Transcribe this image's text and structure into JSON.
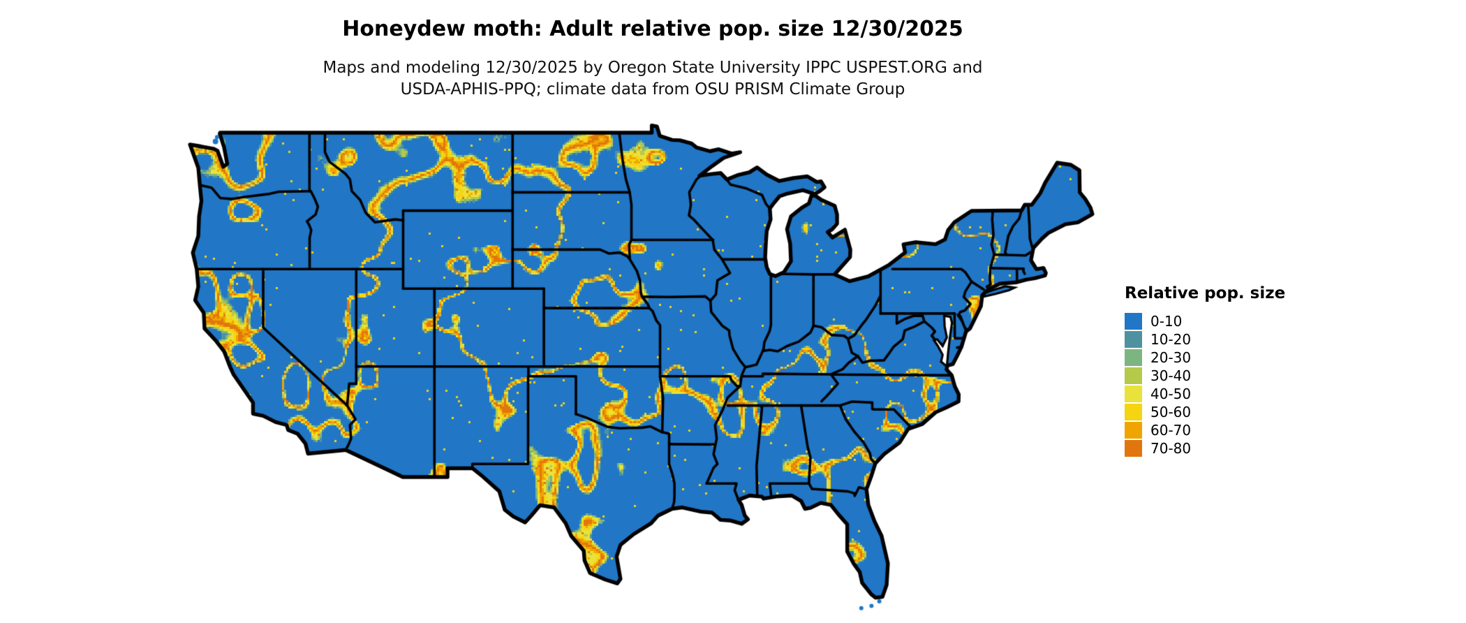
{
  "title": "Honeydew moth: Adult relative pop. size 12/30/2025",
  "subtitle": {
    "line1": "Maps and modeling 12/30/2025 by Oregon State University IPPC USPEST.ORG and",
    "line2": "USDA-APHIS-PPQ; climate data from OSU PRISM Climate Group"
  },
  "legend": {
    "title": "Relative pop. size",
    "items": [
      {
        "label": "0-10",
        "color": "#2176c6"
      },
      {
        "label": "10-20",
        "color": "#4e92a0"
      },
      {
        "label": "20-30",
        "color": "#7db580"
      },
      {
        "label": "30-40",
        "color": "#b5c94a"
      },
      {
        "label": "40-50",
        "color": "#e9e23c"
      },
      {
        "label": "50-60",
        "color": "#f5d411"
      },
      {
        "label": "60-70",
        "color": "#efa400"
      },
      {
        "label": "70-80",
        "color": "#e2760e"
      }
    ]
  },
  "map": {
    "land_color": "#2176c6",
    "border_color": "#000000",
    "water_color": "#ffffff",
    "vein_colors": [
      "#e2760e",
      "#efa400",
      "#f5d411",
      "#e9e23c",
      "#b5c94a",
      "#7db580",
      "#4e92a0"
    ],
    "vein_thresholds": [
      0.005,
      0.01,
      0.016,
      0.023,
      0.027,
      0.03,
      0.033
    ]
  }
}
